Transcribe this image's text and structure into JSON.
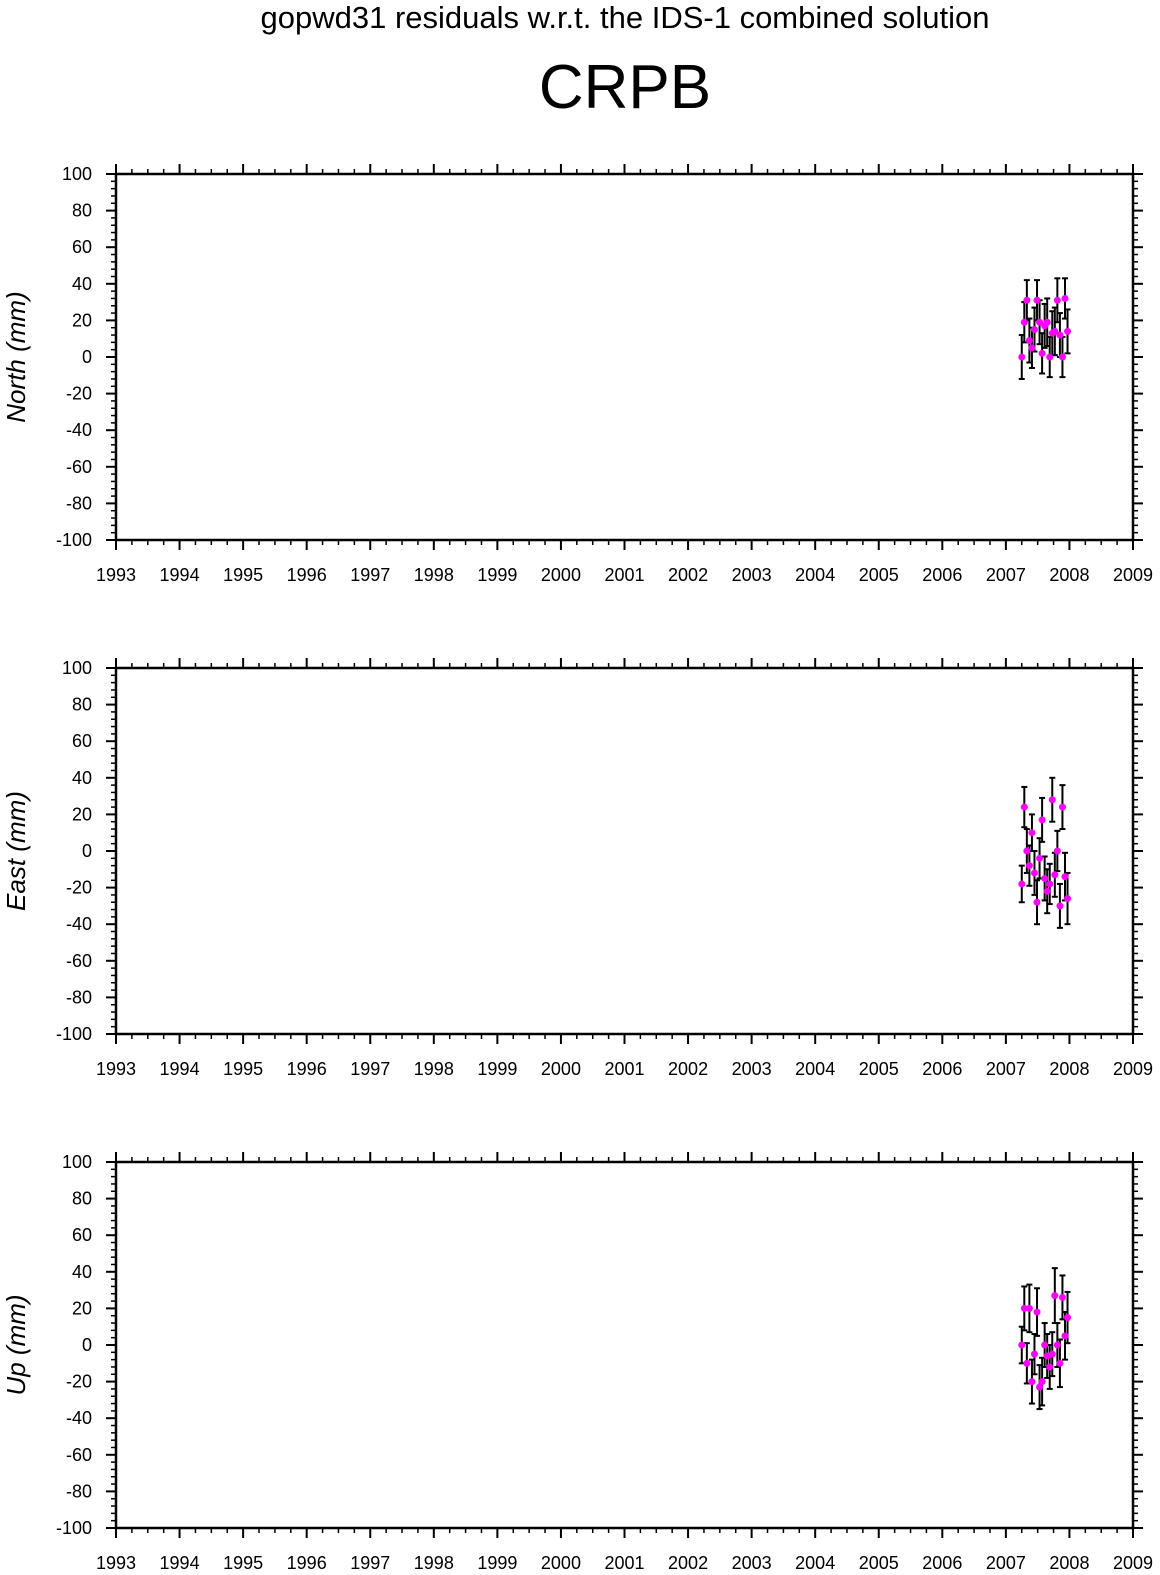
{
  "header": {
    "suptitle": "gopwd31 residuals w.r.t. the IDS-1 combined solution",
    "station": "CRPB"
  },
  "colors": {
    "point": "#ff00ff",
    "errorbar": "#000000",
    "frame": "#000000"
  },
  "chart_data": [
    {
      "type": "scatter",
      "ylabel": "North (mm)",
      "xlim": [
        1993,
        2009
      ],
      "ylim": [
        -100,
        100
      ],
      "xticks": [
        "1993",
        "1994",
        "1995",
        "1996",
        "1997",
        "1998",
        "1999",
        "2000",
        "2001",
        "2002",
        "2003",
        "2004",
        "2005",
        "2006",
        "2007",
        "2008",
        "2009"
      ],
      "yticks": [
        "100",
        "80",
        "60",
        "40",
        "20",
        "0",
        "-20",
        "-40",
        "-60",
        "-80",
        "-100"
      ],
      "grid": false,
      "series": [
        {
          "x": [
            2007.25,
            2007.29,
            2007.33,
            2007.37,
            2007.41,
            2007.45,
            2007.49,
            2007.53,
            2007.57,
            2007.61,
            2007.65,
            2007.69,
            2007.73,
            2007.77,
            2007.81,
            2007.85,
            2007.89,
            2007.93,
            2007.97
          ],
          "y": [
            0,
            19,
            31,
            9,
            5,
            15,
            31,
            19,
            2,
            17,
            19,
            0,
            13,
            14,
            31,
            12,
            0,
            32,
            14
          ],
          "err": [
            12,
            11,
            11,
            12,
            11,
            12,
            11,
            12,
            11,
            12,
            13,
            11,
            12,
            13,
            12,
            12,
            11,
            11,
            12
          ]
        }
      ]
    },
    {
      "type": "scatter",
      "ylabel": "East (mm)",
      "xlim": [
        1993,
        2009
      ],
      "ylim": [
        -100,
        100
      ],
      "xticks": [
        "1993",
        "1994",
        "1995",
        "1996",
        "1997",
        "1998",
        "1999",
        "2000",
        "2001",
        "2002",
        "2003",
        "2004",
        "2005",
        "2006",
        "2007",
        "2008",
        "2009"
      ],
      "yticks": [
        "100",
        "80",
        "60",
        "40",
        "20",
        "0",
        "-20",
        "-40",
        "-60",
        "-80",
        "-100"
      ],
      "grid": false,
      "series": [
        {
          "x": [
            2007.25,
            2007.29,
            2007.33,
            2007.37,
            2007.41,
            2007.45,
            2007.49,
            2007.53,
            2007.57,
            2007.61,
            2007.65,
            2007.69,
            2007.73,
            2007.77,
            2007.81,
            2007.85,
            2007.89,
            2007.93,
            2007.97
          ],
          "y": [
            -18,
            24,
            0,
            -8,
            10,
            -12,
            -28,
            -4,
            17,
            -15,
            -22,
            -18,
            28,
            -13,
            0,
            -30,
            24,
            -14,
            -26
          ],
          "err": [
            10,
            11,
            12,
            11,
            10,
            12,
            12,
            11,
            12,
            12,
            12,
            11,
            12,
            12,
            11,
            12,
            12,
            13,
            14
          ]
        }
      ]
    },
    {
      "type": "scatter",
      "ylabel": "Up (mm)",
      "xlim": [
        1993,
        2009
      ],
      "ylim": [
        -100,
        100
      ],
      "xticks": [
        "1993",
        "1994",
        "1995",
        "1996",
        "1997",
        "1998",
        "1999",
        "2000",
        "2001",
        "2002",
        "2003",
        "2004",
        "2005",
        "2006",
        "2007",
        "2008",
        "2009"
      ],
      "yticks": [
        "100",
        "80",
        "60",
        "40",
        "20",
        "0",
        "-20",
        "-40",
        "-60",
        "-80",
        "-100"
      ],
      "grid": false,
      "series": [
        {
          "x": [
            2007.25,
            2007.29,
            2007.33,
            2007.37,
            2007.41,
            2007.45,
            2007.49,
            2007.53,
            2007.57,
            2007.61,
            2007.65,
            2007.69,
            2007.73,
            2007.77,
            2007.81,
            2007.85,
            2007.89,
            2007.93,
            2007.97
          ],
          "y": [
            0,
            20,
            -10,
            20,
            -20,
            -5,
            18,
            -23,
            -20,
            0,
            -6,
            -12,
            -5,
            27,
            0,
            -10,
            26,
            5,
            15
          ],
          "err": [
            10,
            12,
            11,
            13,
            12,
            11,
            13,
            12,
            13,
            12,
            12,
            12,
            12,
            15,
            12,
            13,
            12,
            13,
            14
          ]
        }
      ]
    }
  ]
}
